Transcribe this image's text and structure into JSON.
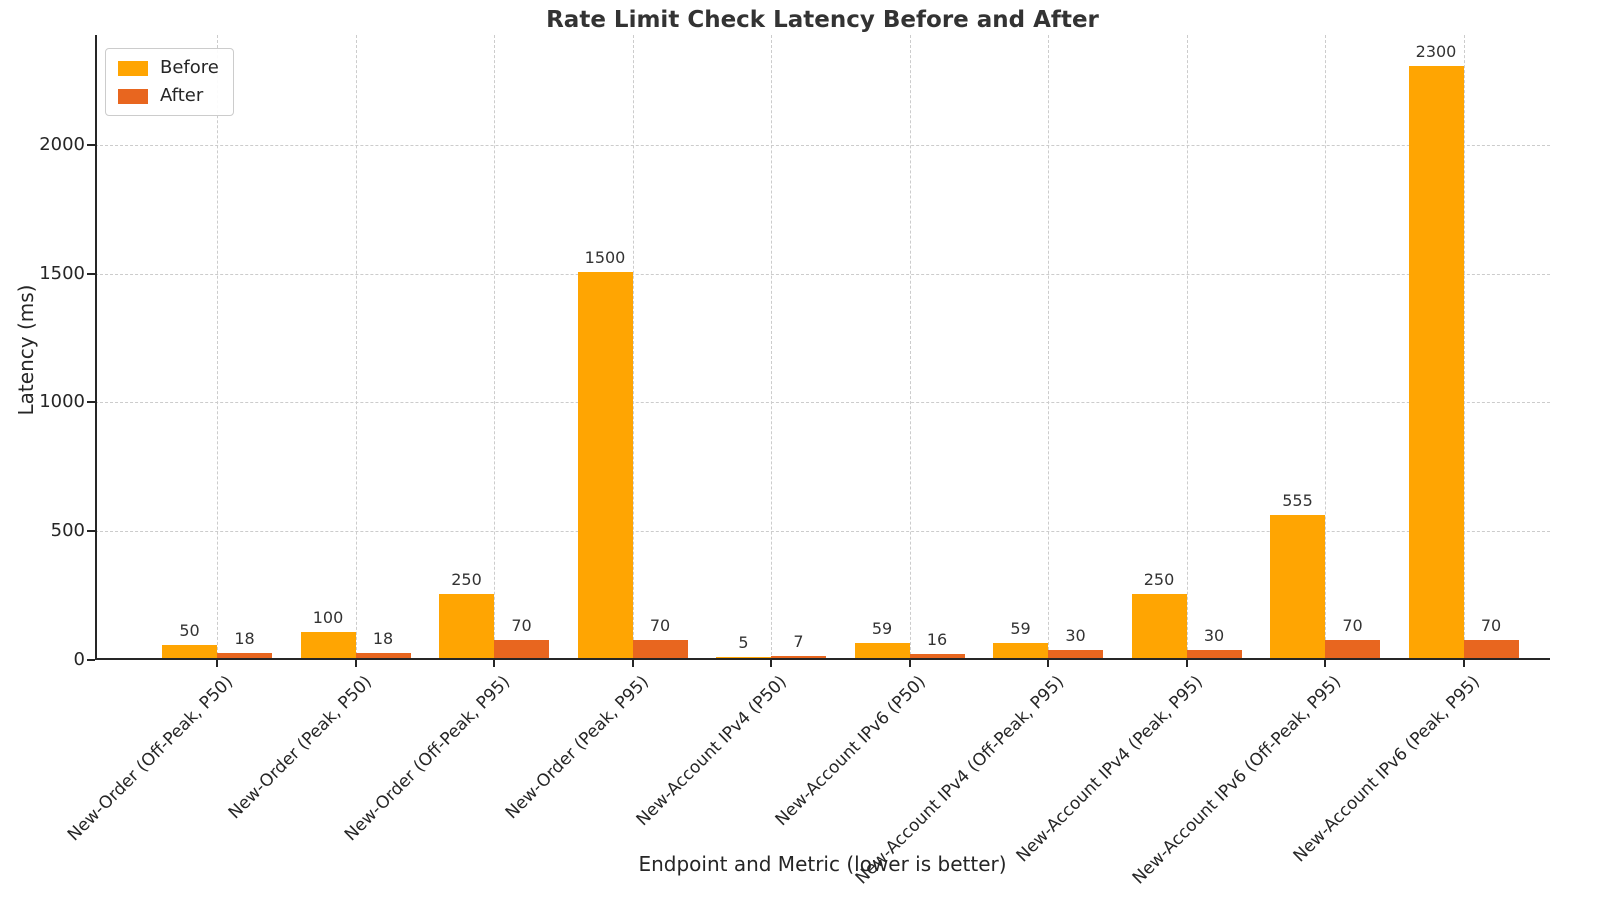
{
  "chart_data": {
    "type": "bar",
    "title": "Rate Limit Check Latency Before and After",
    "xlabel": "Endpoint and Metric (lower is better)",
    "ylabel": "Latency (ms)",
    "categories": [
      "New-Order (Off-Peak, P50)",
      "New-Order (Peak, P50)",
      "New-Order (Off-Peak, P95)",
      "New-Order (Peak, P95)",
      "New-Account IPv4 (P50)",
      "New-Account IPv6 (P50)",
      "New-Account IPv4 (Off-Peak, P95)",
      "New-Account IPv4 (Peak, P95)",
      "New-Account IPv6 (Off-Peak, P95)",
      "New-Account IPv6 (Peak, P95)"
    ],
    "series": [
      {
        "name": "Before",
        "color": "#FFA502",
        "values": [
          50,
          100,
          250,
          1500,
          5,
          59,
          59,
          250,
          555,
          2300
        ]
      },
      {
        "name": "After",
        "color": "#E8661F",
        "values": [
          18,
          18,
          70,
          70,
          7,
          16,
          30,
          30,
          70,
          70
        ]
      }
    ],
    "yticks": [
      0,
      500,
      1000,
      1500,
      2000
    ],
    "ylim": [
      0,
      2427
    ],
    "grid": true,
    "grid_color": "#cccccc",
    "legend_position": "upper-left",
    "value_labels": true,
    "text_color": "#262626"
  }
}
